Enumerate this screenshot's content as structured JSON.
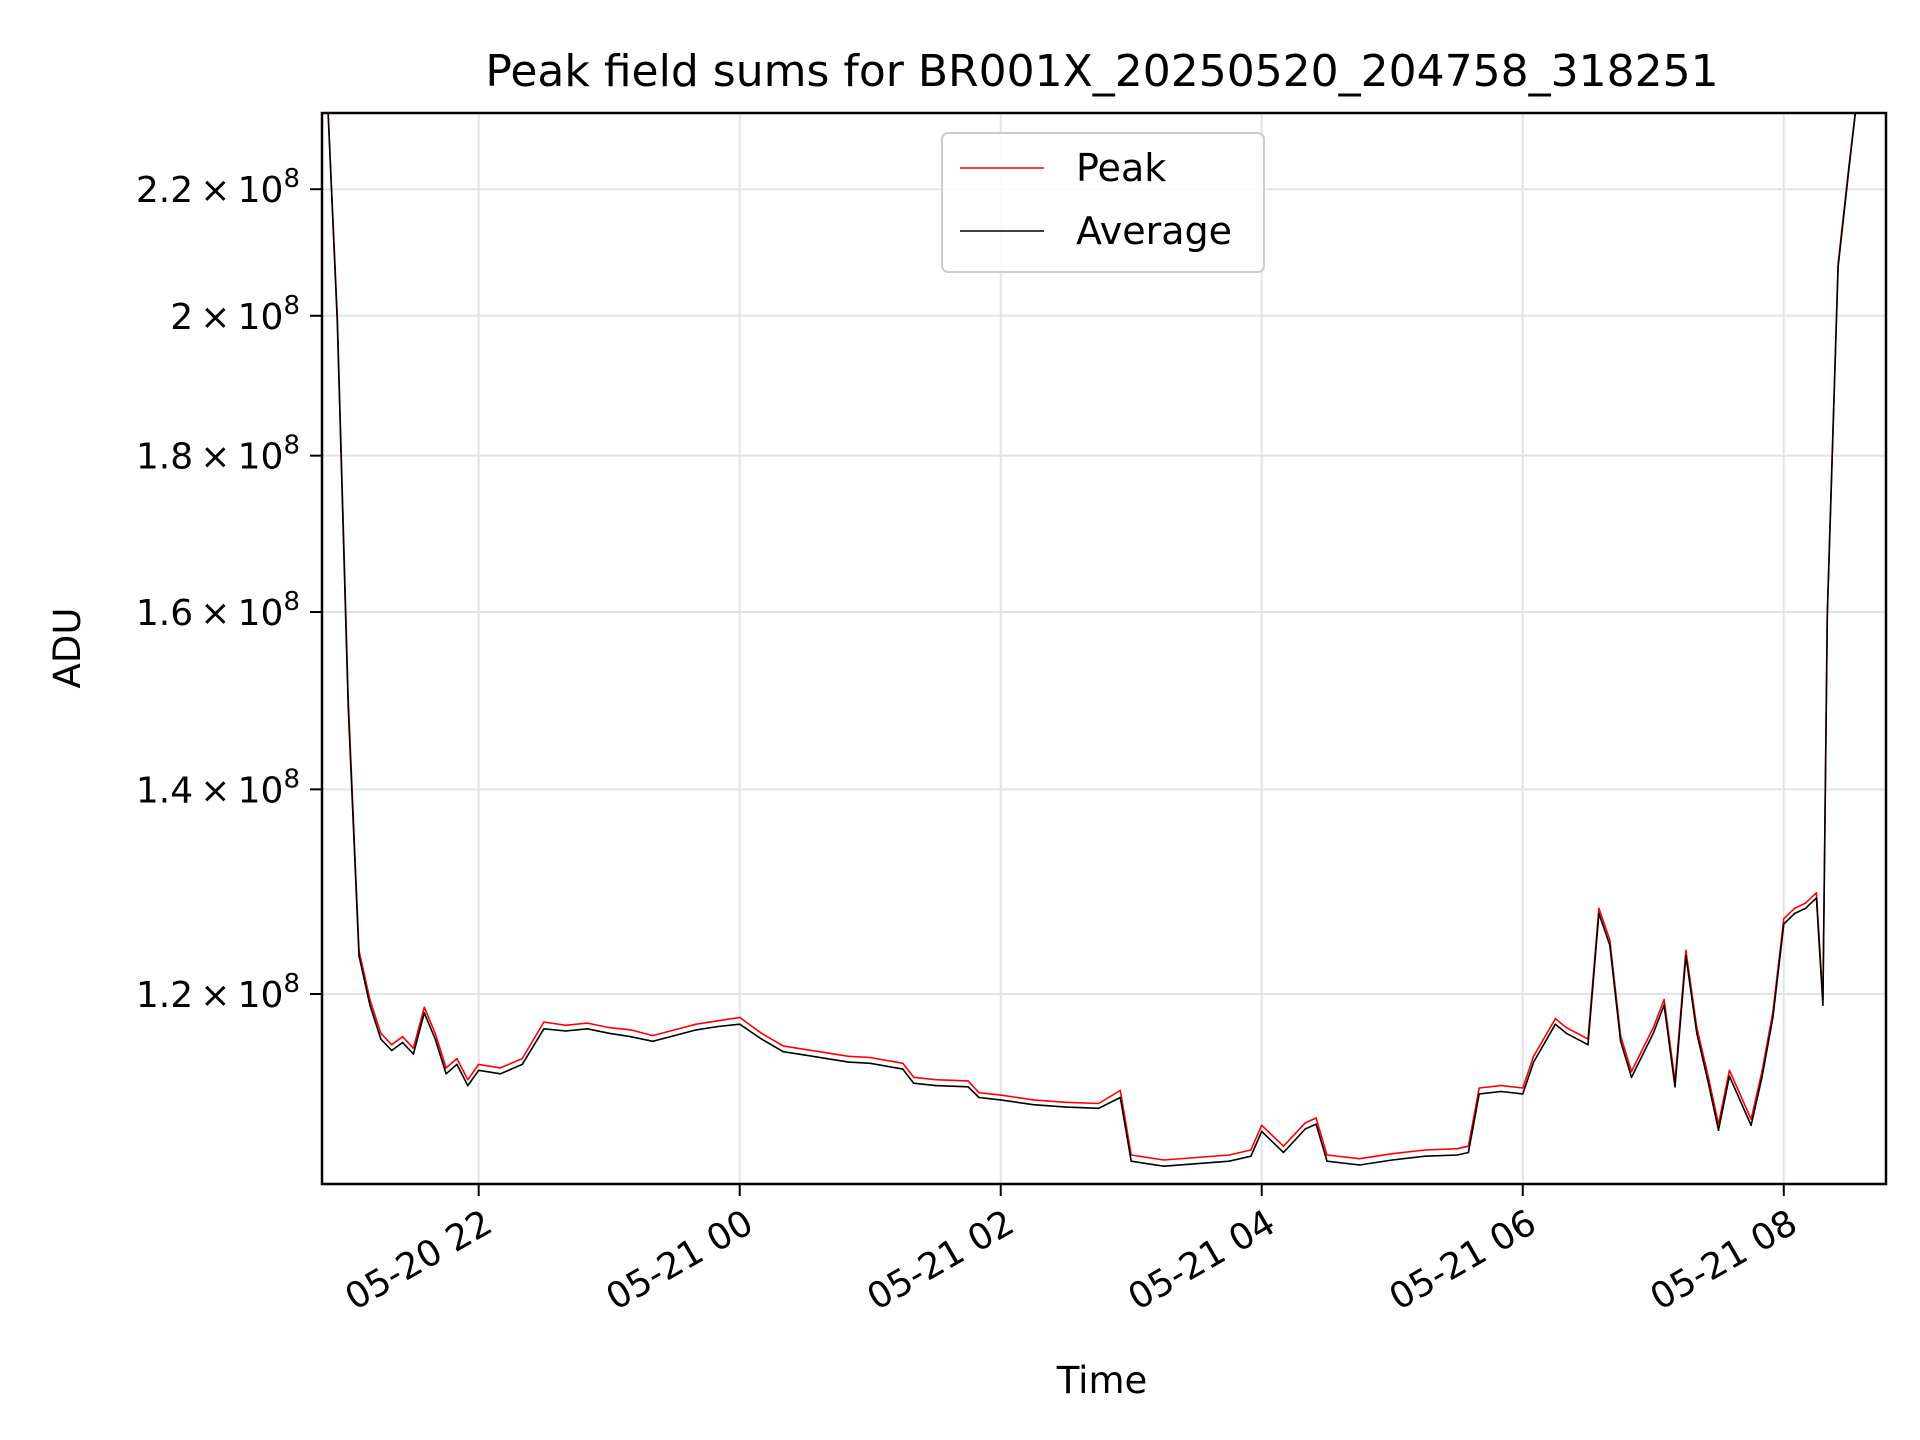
{
  "chart_data": {
    "type": "line",
    "title": "Peak field sums for BR001X_20250520_204758_318251",
    "xlabel": "Time",
    "ylabel": "ADU",
    "y_scale": "log",
    "xlim": [
      "2025-05-20T20:47:58",
      "2025-05-21T08:47:00"
    ],
    "ylim": [
      104000000,
      233000000
    ],
    "grid": true,
    "legend_position": "top-center",
    "x_ticks": [
      {
        "value": "2025-05-20T22:00:00",
        "label": "05-20 22"
      },
      {
        "value": "2025-05-21T00:00:00",
        "label": "05-21 00"
      },
      {
        "value": "2025-05-21T02:00:00",
        "label": "05-21 02"
      },
      {
        "value": "2025-05-21T04:00:00",
        "label": "05-21 04"
      },
      {
        "value": "2025-05-21T06:00:00",
        "label": "05-21 06"
      },
      {
        "value": "2025-05-21T08:00:00",
        "label": "05-21 08"
      }
    ],
    "y_ticks": [
      {
        "value": 120000000,
        "mantissa": "1.2",
        "exp": "8"
      },
      {
        "value": 140000000,
        "mantissa": "1.4",
        "exp": "8"
      },
      {
        "value": 160000000,
        "mantissa": "1.6",
        "exp": "8"
      },
      {
        "value": 180000000,
        "mantissa": "1.8",
        "exp": "8"
      },
      {
        "value": 200000000,
        "mantissa": "2",
        "exp": "8"
      },
      {
        "value": 220000000,
        "mantissa": "2.2",
        "exp": "8"
      }
    ],
    "x": [
      "2025-05-20T20:50:00",
      "2025-05-20T20:55:00",
      "2025-05-20T21:00:00",
      "2025-05-20T21:05:00",
      "2025-05-20T21:10:00",
      "2025-05-20T21:15:00",
      "2025-05-20T21:20:00",
      "2025-05-20T21:25:00",
      "2025-05-20T21:30:00",
      "2025-05-20T21:35:00",
      "2025-05-20T21:40:00",
      "2025-05-20T21:45:00",
      "2025-05-20T21:50:00",
      "2025-05-20T21:55:00",
      "2025-05-20T22:00:00",
      "2025-05-20T22:10:00",
      "2025-05-20T22:20:00",
      "2025-05-20T22:30:00",
      "2025-05-20T22:40:00",
      "2025-05-20T22:50:00",
      "2025-05-20T23:00:00",
      "2025-05-20T23:10:00",
      "2025-05-20T23:20:00",
      "2025-05-20T23:30:00",
      "2025-05-20T23:40:00",
      "2025-05-20T23:50:00",
      "2025-05-21T00:00:00",
      "2025-05-21T00:10:00",
      "2025-05-21T00:20:00",
      "2025-05-21T00:30:00",
      "2025-05-21T00:40:00",
      "2025-05-21T00:50:00",
      "2025-05-21T01:00:00",
      "2025-05-21T01:15:00",
      "2025-05-21T01:20:00",
      "2025-05-21T01:30:00",
      "2025-05-21T01:45:00",
      "2025-05-21T01:50:00",
      "2025-05-21T02:00:00",
      "2025-05-21T02:15:00",
      "2025-05-21T02:30:00",
      "2025-05-21T02:45:00",
      "2025-05-21T02:55:00",
      "2025-05-21T03:00:00",
      "2025-05-21T03:15:00",
      "2025-05-21T03:30:00",
      "2025-05-21T03:45:00",
      "2025-05-21T03:55:00",
      "2025-05-21T04:00:00",
      "2025-05-21T04:10:00",
      "2025-05-21T04:20:00",
      "2025-05-21T04:25:00",
      "2025-05-21T04:30:00",
      "2025-05-21T04:45:00",
      "2025-05-21T05:00:00",
      "2025-05-21T05:15:00",
      "2025-05-21T05:30:00",
      "2025-05-21T05:35:00",
      "2025-05-21T05:40:00",
      "2025-05-21T05:50:00",
      "2025-05-21T06:00:00",
      "2025-05-21T06:05:00",
      "2025-05-21T06:15:00",
      "2025-05-21T06:20:00",
      "2025-05-21T06:30:00",
      "2025-05-21T06:35:00",
      "2025-05-21T06:40:00",
      "2025-05-21T06:45:00",
      "2025-05-21T06:50:00",
      "2025-05-21T07:00:00",
      "2025-05-21T07:05:00",
      "2025-05-21T07:10:00",
      "2025-05-21T07:15:00",
      "2025-05-21T07:20:00",
      "2025-05-21T07:25:00",
      "2025-05-21T07:30:00",
      "2025-05-21T07:35:00",
      "2025-05-21T07:45:00",
      "2025-05-21T07:50:00",
      "2025-05-21T07:55:00",
      "2025-05-21T08:00:00",
      "2025-05-21T08:05:00",
      "2025-05-21T08:10:00",
      "2025-05-21T08:15:00",
      "2025-05-21T08:18:00",
      "2025-05-21T08:20:00",
      "2025-05-21T08:25:00",
      "2025-05-21T08:30:00",
      "2025-05-21T08:35:00",
      "2025-05-21T08:40:00"
    ],
    "series": [
      {
        "name": "Peak",
        "color": "#ff0000",
        "values": [
          240000000,
          200000000,
          150000000,
          124000000,
          119500000,
          116500000,
          115500000,
          116200000,
          115200000,
          118800000,
          116500000,
          113500000,
          114300000,
          112500000,
          113800000,
          113500000,
          114300000,
          117500000,
          117200000,
          117400000,
          117000000,
          116800000,
          116300000,
          116800000,
          117300000,
          117600000,
          117900000,
          116500000,
          115400000,
          115100000,
          114800000,
          114500000,
          114400000,
          113900000,
          112700000,
          112500000,
          112400000,
          111400000,
          111200000,
          110800000,
          110600000,
          110500000,
          111600000,
          106300000,
          105900000,
          106100000,
          106300000,
          106700000,
          108700000,
          107000000,
          108900000,
          109300000,
          106300000,
          106000000,
          106400000,
          106700000,
          106800000,
          107000000,
          111800000,
          112000000,
          111800000,
          114500000,
          117800000,
          117000000,
          116000000,
          128000000,
          125000000,
          116300000,
          113200000,
          117000000,
          119500000,
          112400000,
          124000000,
          117000000,
          113000000,
          108800000,
          113300000,
          109200000,
          113200000,
          118400000,
          127000000,
          128000000,
          128500000,
          129500000,
          119500000,
          160000000,
          208000000,
          224000000,
          240000000,
          240000000
        ]
      },
      {
        "name": "Average",
        "color": "#000000",
        "values": [
          240000000,
          199000000,
          149000000,
          123500000,
          119000000,
          116000000,
          115000000,
          115700000,
          114700000,
          118300000,
          116000000,
          113000000,
          113800000,
          112000000,
          113300000,
          113000000,
          113800000,
          116900000,
          116700000,
          116900000,
          116500000,
          116200000,
          115800000,
          116300000,
          116800000,
          117100000,
          117300000,
          116000000,
          114900000,
          114600000,
          114300000,
          114000000,
          113900000,
          113400000,
          112200000,
          112000000,
          111900000,
          111000000,
          110800000,
          110400000,
          110200000,
          110100000,
          111000000,
          105800000,
          105400000,
          105600000,
          105800000,
          106200000,
          108200000,
          106500000,
          108400000,
          108800000,
          105800000,
          105500000,
          105900000,
          106200000,
          106300000,
          106500000,
          111300000,
          111500000,
          111300000,
          114000000,
          117300000,
          116500000,
          115500000,
          127500000,
          124500000,
          115800000,
          112700000,
          116500000,
          119000000,
          111900000,
          123500000,
          116500000,
          112500000,
          108300000,
          112800000,
          108700000,
          112700000,
          117900000,
          126500000,
          127500000,
          128000000,
          129000000,
          119000000,
          159500000,
          207500000,
          223500000,
          240000000,
          240000000
        ]
      }
    ]
  }
}
